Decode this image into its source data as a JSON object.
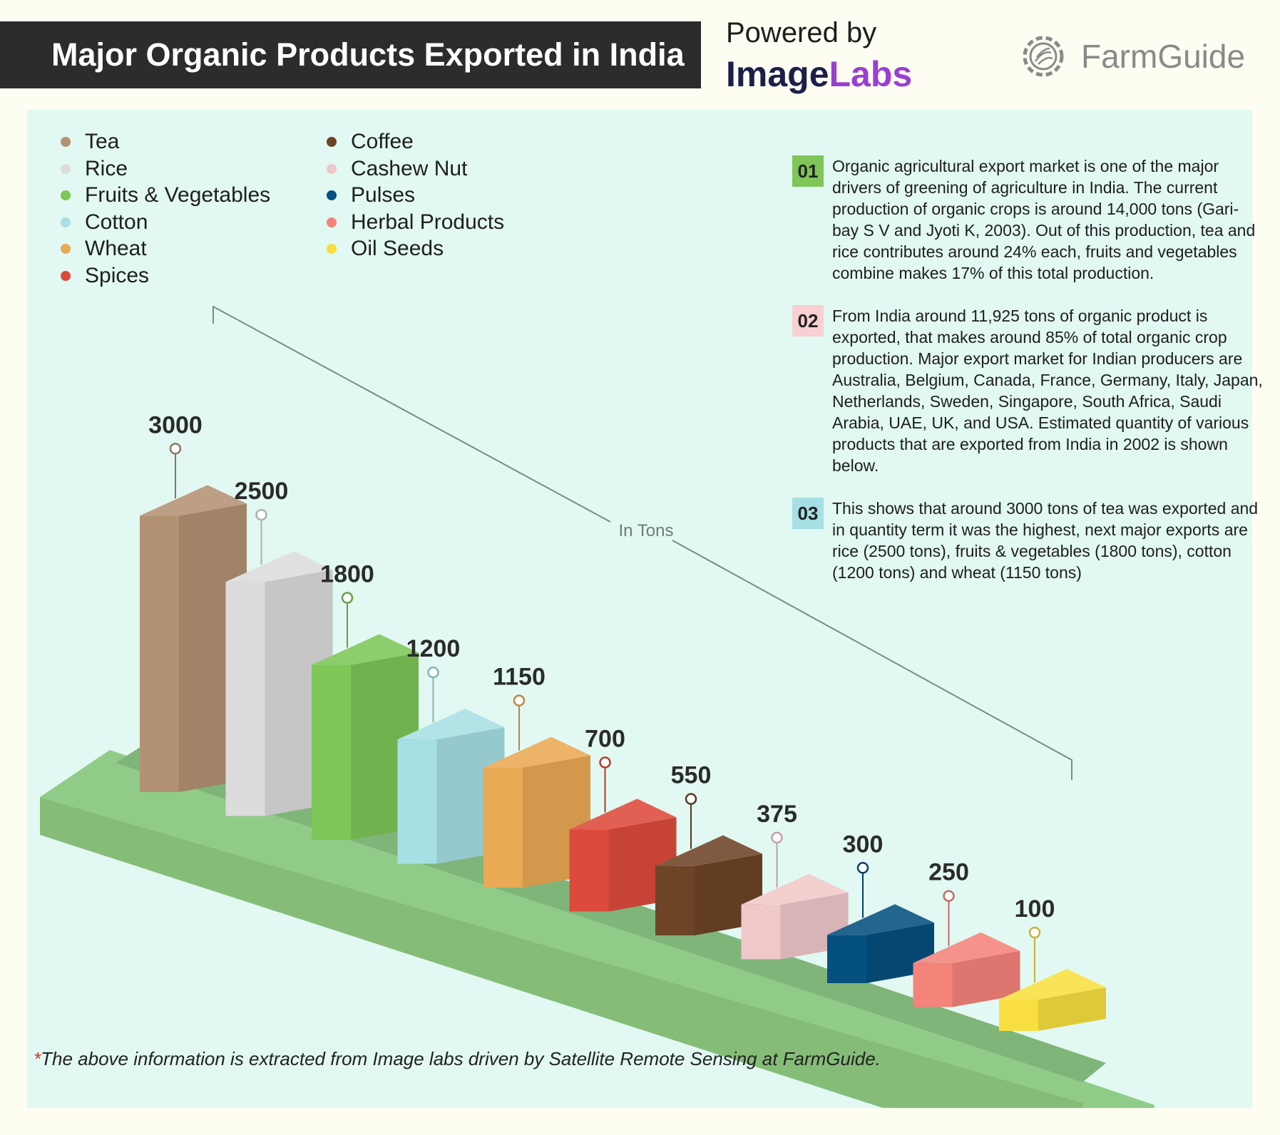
{
  "title": "Major Organic Products Exported in India",
  "powered": {
    "by": "Powered by",
    "brand_a": "Image",
    "brand_b": "Labs"
  },
  "logo": {
    "name": "FarmGuide"
  },
  "notes": [
    {
      "num": "01",
      "color": "#7dc657",
      "text": "Organic agricultural export market is one of the major drivers of greening of agriculture in India. The current production of organic crops is around 14,000 tons (Gari-bay S V and Jyoti K, 2003). Out of this production, tea and rice contributes around 24% each, fruits and vegetables combine makes 17% of this total production."
    },
    {
      "num": "02",
      "color": "#f8d0d2",
      "text": "From India around 11,925 tons of organic product is exported, that makes around 85% of total organic crop production. Major export market for Indian producers are Australia, Belgium, Canada, France, Germany, Italy, Japan, Netherlands, Sweden, Singapore, South Africa, Saudi Arabia, UAE, UK, and USA. Estimated quantity of various products that are exported from India in 2002 is shown below."
    },
    {
      "num": "03",
      "color": "#a6dfe4",
      "text": "This shows that around 3000 tons of tea was exported and in quantity term it was the highest, next major exports are rice (2500 tons), fruits & vegetables (1800 tons), cotton (1200 tons) and wheat (1150 tons)"
    }
  ],
  "footnote": {
    "star": "*",
    "text": "The above information is extracted from Image labs driven by Satellite Remote Sensing at FarmGuide."
  },
  "chart_data": {
    "type": "bar",
    "unit_label": "In Tons",
    "categories": [
      "Tea",
      "Rice",
      "Fruits & Vegetables",
      "Cotton",
      "Wheat",
      "Spices",
      "Coffee",
      "Cashew Nut",
      "Pulses",
      "Herbal Products",
      "Oil Seeds"
    ],
    "values": [
      3000,
      2500,
      1800,
      1200,
      1150,
      700,
      550,
      375,
      300,
      250,
      100
    ],
    "value_labels": [
      "3000",
      "2500",
      "1800",
      "1200",
      "1150",
      "700",
      "550",
      "375",
      "300",
      "250",
      "100"
    ],
    "colors": [
      "#b39273",
      "#dcdcdc",
      "#7dc657",
      "#a6dfe4",
      "#eaa954",
      "#dd4a3b",
      "#6d4426",
      "#f1c8ca",
      "#04507f",
      "#f4837a",
      "#f8df3f"
    ]
  }
}
